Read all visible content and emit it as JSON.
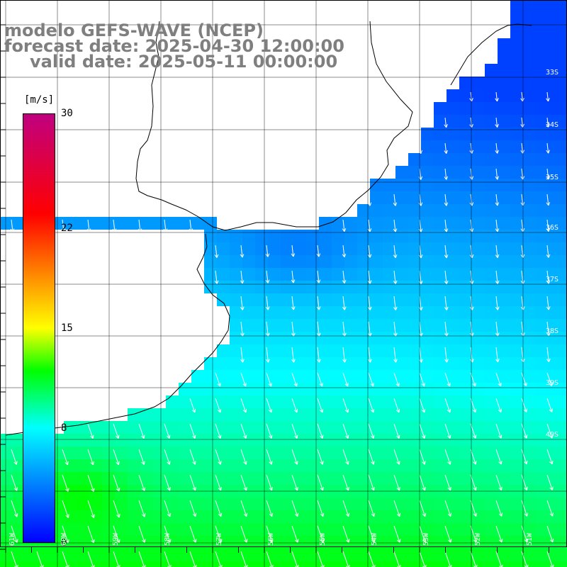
{
  "title": {
    "line1": "modelo GEFS-WAVE (NCEP)",
    "line2": "forecast date: 2025-04-30 12:00:00",
    "line3": "valid date: 2025-05-11 00:00:00"
  },
  "legend": {
    "unit": "[m/s]",
    "ticks": [
      "30",
      "22",
      "15",
      "8",
      "0"
    ],
    "tick_values": [
      30,
      22,
      15,
      8,
      0
    ],
    "range": [
      0,
      30
    ],
    "colormap": [
      "#0000ff",
      "#0080ff",
      "#00ffff",
      "#00ff00",
      "#ffff00",
      "#ff8000",
      "#ff0000",
      "#c00080"
    ],
    "colormap_stops": [
      0,
      4,
      8,
      12,
      15,
      19,
      23,
      30
    ]
  },
  "axes": {
    "lon_labels": [
      "61W",
      "60W",
      "59W",
      "58W",
      "57W",
      "56W",
      "55W",
      "54W",
      "53W",
      "52W",
      "51W"
    ],
    "lat_labels": [
      "33S",
      "34S",
      "35S",
      "36S",
      "37S",
      "38S",
      "39S",
      "40S"
    ]
  },
  "colors": {
    "title": "#7f7f7f",
    "land": "#ffffff",
    "coastline": "#000000",
    "grid": "#000000",
    "arrow": "#ffffff"
  },
  "wind_field": {
    "direction": "toward south-southeast",
    "speed_north_ms": 5,
    "speed_south_ms": 12
  }
}
